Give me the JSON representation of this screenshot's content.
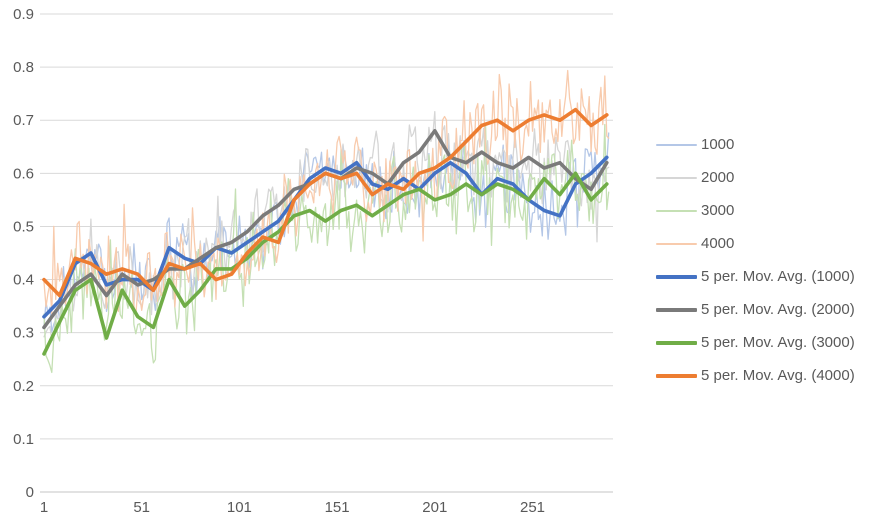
{
  "window": {
    "background": "#ffffff"
  },
  "axes": {
    "label_color": "#595959",
    "gridline_color": "#d9d9d9",
    "axis_line_color": "#c6c6c6",
    "y_tick_labels": [
      "0",
      "0.1",
      "0.2",
      "0.3",
      "0.4",
      "0.5",
      "0.6",
      "0.7",
      "0.8",
      "0.9"
    ],
    "x_tick_labels": [
      "1",
      "51",
      "101",
      "151",
      "201",
      "251"
    ]
  },
  "chart_data": {
    "type": "line",
    "title": "",
    "xlabel": "",
    "ylabel": "",
    "xlim": [
      1,
      290
    ],
    "ylim": [
      0,
      0.9
    ],
    "y_ticks": [
      0,
      0.1,
      0.2,
      0.3,
      0.4,
      0.5,
      0.6,
      0.7,
      0.8,
      0.9
    ],
    "x_ticks": [
      1,
      51,
      101,
      151,
      201,
      251
    ],
    "grid": "horizontal",
    "legend_position": "right",
    "series": [
      {
        "name": "1000",
        "role": "raw",
        "color": "#b4c7e7",
        "stroke_width": 1.3,
        "base": "5 per. Mov. Avg. (1000)",
        "noise_amplitude": 0.052,
        "noise_seed": 101
      },
      {
        "name": "2000",
        "role": "raw",
        "color": "#d6d6d6",
        "stroke_width": 1.3,
        "base": "5 per. Mov. Avg. (2000)",
        "noise_amplitude": 0.052,
        "noise_seed": 202
      },
      {
        "name": "3000",
        "role": "raw",
        "color": "#c5e0b4",
        "stroke_width": 1.3,
        "base": "5 per. Mov. Avg. (3000)",
        "noise_amplitude": 0.062,
        "noise_seed": 303
      },
      {
        "name": "4000",
        "role": "raw",
        "color": "#f8cbad",
        "stroke_width": 1.3,
        "base": "5 per. Mov. Avg. (4000)",
        "noise_amplitude": 0.062,
        "noise_seed": 404
      },
      {
        "name": "5 per. Mov. Avg. (1000)",
        "role": "moving_average",
        "window": 5,
        "color": "#4472c4",
        "stroke_width": 3.6,
        "x_start": 1,
        "x_step": 8,
        "values": [
          0.33,
          0.36,
          0.43,
          0.45,
          0.39,
          0.4,
          0.4,
          0.38,
          0.46,
          0.44,
          0.43,
          0.46,
          0.45,
          0.47,
          0.49,
          0.51,
          0.55,
          0.59,
          0.61,
          0.6,
          0.62,
          0.58,
          0.57,
          0.59,
          0.57,
          0.6,
          0.62,
          0.6,
          0.56,
          0.59,
          0.58,
          0.55,
          0.53,
          0.52,
          0.58,
          0.6,
          0.63
        ]
      },
      {
        "name": "5 per. Mov. Avg. (2000)",
        "role": "moving_average",
        "window": 5,
        "color": "#7a7a7a",
        "stroke_width": 3.6,
        "x_start": 1,
        "x_step": 8,
        "values": [
          0.31,
          0.35,
          0.39,
          0.41,
          0.37,
          0.41,
          0.39,
          0.4,
          0.42,
          0.42,
          0.44,
          0.46,
          0.47,
          0.49,
          0.52,
          0.54,
          0.57,
          0.58,
          0.6,
          0.59,
          0.61,
          0.6,
          0.58,
          0.62,
          0.64,
          0.68,
          0.63,
          0.62,
          0.64,
          0.62,
          0.61,
          0.63,
          0.61,
          0.62,
          0.59,
          0.57,
          0.62
        ]
      },
      {
        "name": "5 per. Mov. Avg. (3000)",
        "role": "moving_average",
        "window": 5,
        "color": "#70ad47",
        "stroke_width": 3.6,
        "x_start": 1,
        "x_step": 8,
        "values": [
          0.26,
          0.32,
          0.38,
          0.4,
          0.29,
          0.38,
          0.33,
          0.31,
          0.4,
          0.35,
          0.38,
          0.42,
          0.42,
          0.44,
          0.47,
          0.49,
          0.52,
          0.53,
          0.51,
          0.53,
          0.54,
          0.52,
          0.54,
          0.56,
          0.57,
          0.55,
          0.56,
          0.58,
          0.56,
          0.58,
          0.57,
          0.55,
          0.59,
          0.56,
          0.6,
          0.55,
          0.58
        ]
      },
      {
        "name": "5 per. Mov. Avg. (4000)",
        "role": "moving_average",
        "window": 5,
        "color": "#ed7d31",
        "stroke_width": 3.6,
        "x_start": 1,
        "x_step": 8,
        "values": [
          0.4,
          0.37,
          0.44,
          0.43,
          0.41,
          0.42,
          0.41,
          0.38,
          0.43,
          0.42,
          0.43,
          0.4,
          0.41,
          0.45,
          0.48,
          0.47,
          0.55,
          0.58,
          0.6,
          0.59,
          0.6,
          0.56,
          0.58,
          0.57,
          0.6,
          0.61,
          0.63,
          0.66,
          0.69,
          0.7,
          0.68,
          0.7,
          0.71,
          0.7,
          0.72,
          0.69,
          0.71
        ]
      }
    ]
  }
}
